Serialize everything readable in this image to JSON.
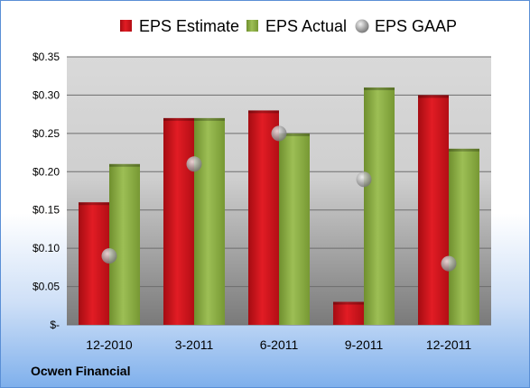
{
  "company": "Ocwen Financial",
  "chart_data": {
    "type": "bar",
    "categories": [
      "12-2010",
      "3-2011",
      "6-2011",
      "9-2011",
      "12-2011"
    ],
    "series": [
      {
        "name": "EPS Estimate",
        "kind": "bar",
        "color": "#d0101a",
        "values": [
          0.16,
          0.27,
          0.28,
          0.03,
          0.3
        ]
      },
      {
        "name": "EPS Actual",
        "kind": "bar",
        "color": "#8cae43",
        "values": [
          0.21,
          0.27,
          0.25,
          0.31,
          0.23
        ]
      },
      {
        "name": "EPS GAAP",
        "kind": "marker",
        "color": "#a8a8a8",
        "values": [
          0.09,
          0.21,
          0.25,
          0.19,
          0.08
        ]
      }
    ],
    "ylim": [
      0,
      0.35
    ],
    "yticks": [
      0,
      0.05,
      0.1,
      0.15,
      0.2,
      0.25,
      0.3,
      0.35
    ],
    "ytick_labels": [
      "$-",
      "$0.05",
      "$0.10",
      "$0.15",
      "$0.20",
      "$0.25",
      "$0.30",
      "$0.35"
    ],
    "legend_position": "top",
    "grid": true
  }
}
